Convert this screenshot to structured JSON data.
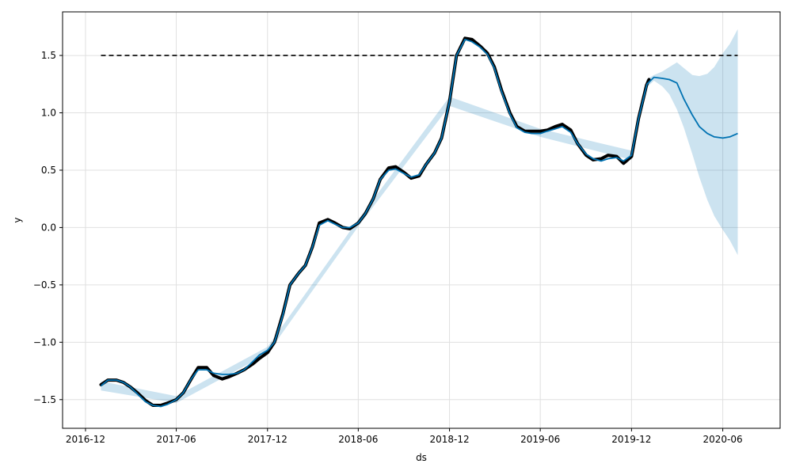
{
  "chart_data": {
    "type": "line",
    "title": "",
    "xlabel": "ds",
    "ylabel": "y",
    "x_range": [
      "2016-10-16",
      "2020-09-24"
    ],
    "ylim": [
      -1.75,
      1.88
    ],
    "x_ticks": [
      {
        "date": "2016-12-01",
        "label": "2016-12"
      },
      {
        "date": "2017-06-01",
        "label": "2017-06"
      },
      {
        "date": "2017-12-01",
        "label": "2017-12"
      },
      {
        "date": "2018-06-01",
        "label": "2018-06"
      },
      {
        "date": "2018-12-01",
        "label": "2018-12"
      },
      {
        "date": "2019-06-01",
        "label": "2019-06"
      },
      {
        "date": "2019-12-01",
        "label": "2019-12"
      },
      {
        "date": "2020-06-01",
        "label": "2020-06"
      }
    ],
    "y_ticks": [
      {
        "value": -1.5,
        "label": "−1.5"
      },
      {
        "value": -1.0,
        "label": "−1.0"
      },
      {
        "value": -0.5,
        "label": "−0.5"
      },
      {
        "value": 0.0,
        "label": "0.0"
      },
      {
        "value": 0.5,
        "label": "0.5"
      },
      {
        "value": 1.0,
        "label": "1.0"
      },
      {
        "value": 1.5,
        "label": "1.5"
      }
    ],
    "grid": true,
    "colors": {
      "observed": "#000000",
      "forecast": "#0072B2",
      "interval": "#0072B2",
      "cap": "#000000",
      "grid": "#e0e0e0"
    },
    "cap": {
      "value": 1.5,
      "x_start": "2017-01-01",
      "x_end": "2020-07-01"
    },
    "observed": [
      {
        "x": "2017-01-01",
        "y": -1.37
      },
      {
        "x": "2017-01-15",
        "y": -1.33
      },
      {
        "x": "2017-02-01",
        "y": -1.33
      },
      {
        "x": "2017-02-15",
        "y": -1.35
      },
      {
        "x": "2017-03-01",
        "y": -1.39
      },
      {
        "x": "2017-03-15",
        "y": -1.44
      },
      {
        "x": "2017-04-01",
        "y": -1.51
      },
      {
        "x": "2017-04-15",
        "y": -1.55
      },
      {
        "x": "2017-05-01",
        "y": -1.55
      },
      {
        "x": "2017-05-15",
        "y": -1.53
      },
      {
        "x": "2017-06-01",
        "y": -1.5
      },
      {
        "x": "2017-06-15",
        "y": -1.44
      },
      {
        "x": "2017-07-01",
        "y": -1.32
      },
      {
        "x": "2017-07-15",
        "y": -1.22
      },
      {
        "x": "2017-08-01",
        "y": -1.22
      },
      {
        "x": "2017-08-15",
        "y": -1.29
      },
      {
        "x": "2017-09-01",
        "y": -1.32
      },
      {
        "x": "2017-09-15",
        "y": -1.3
      },
      {
        "x": "2017-10-01",
        "y": -1.27
      },
      {
        "x": "2017-10-15",
        "y": -1.24
      },
      {
        "x": "2017-11-01",
        "y": -1.19
      },
      {
        "x": "2017-11-15",
        "y": -1.14
      },
      {
        "x": "2017-12-01",
        "y": -1.09
      },
      {
        "x": "2017-12-15",
        "y": -1.0
      },
      {
        "x": "2018-01-01",
        "y": -0.75
      },
      {
        "x": "2018-01-15",
        "y": -0.5
      },
      {
        "x": "2018-02-01",
        "y": -0.4
      },
      {
        "x": "2018-02-15",
        "y": -0.33
      },
      {
        "x": "2018-03-01",
        "y": -0.17
      },
      {
        "x": "2018-03-15",
        "y": 0.04
      },
      {
        "x": "2018-04-01",
        "y": 0.07
      },
      {
        "x": "2018-04-15",
        "y": 0.04
      },
      {
        "x": "2018-05-01",
        "y": 0.0
      },
      {
        "x": "2018-05-15",
        "y": -0.01
      },
      {
        "x": "2018-06-01",
        "y": 0.04
      },
      {
        "x": "2018-06-15",
        "y": 0.12
      },
      {
        "x": "2018-07-01",
        "y": 0.25
      },
      {
        "x": "2018-07-15",
        "y": 0.42
      },
      {
        "x": "2018-08-01",
        "y": 0.52
      },
      {
        "x": "2018-08-15",
        "y": 0.53
      },
      {
        "x": "2018-09-01",
        "y": 0.48
      },
      {
        "x": "2018-09-15",
        "y": 0.43
      },
      {
        "x": "2018-10-01",
        "y": 0.45
      },
      {
        "x": "2018-10-15",
        "y": 0.55
      },
      {
        "x": "2018-11-01",
        "y": 0.65
      },
      {
        "x": "2018-11-15",
        "y": 0.78
      },
      {
        "x": "2018-12-01",
        "y": 1.1
      },
      {
        "x": "2018-12-15",
        "y": 1.5
      },
      {
        "x": "2019-01-01",
        "y": 1.65
      },
      {
        "x": "2019-01-15",
        "y": 1.64
      },
      {
        "x": "2019-02-01",
        "y": 1.58
      },
      {
        "x": "2019-02-15",
        "y": 1.52
      },
      {
        "x": "2019-03-01",
        "y": 1.4
      },
      {
        "x": "2019-03-15",
        "y": 1.2
      },
      {
        "x": "2019-04-01",
        "y": 1.0
      },
      {
        "x": "2019-04-15",
        "y": 0.88
      },
      {
        "x": "2019-05-01",
        "y": 0.84
      },
      {
        "x": "2019-05-15",
        "y": 0.84
      },
      {
        "x": "2019-06-01",
        "y": 0.84
      },
      {
        "x": "2019-06-15",
        "y": 0.85
      },
      {
        "x": "2019-07-01",
        "y": 0.88
      },
      {
        "x": "2019-07-15",
        "y": 0.9
      },
      {
        "x": "2019-08-01",
        "y": 0.85
      },
      {
        "x": "2019-08-15",
        "y": 0.73
      },
      {
        "x": "2019-09-01",
        "y": 0.63
      },
      {
        "x": "2019-09-15",
        "y": 0.59
      },
      {
        "x": "2019-10-01",
        "y": 0.6
      },
      {
        "x": "2019-10-15",
        "y": 0.63
      },
      {
        "x": "2019-11-01",
        "y": 0.62
      },
      {
        "x": "2019-11-15",
        "y": 0.56
      },
      {
        "x": "2019-12-01",
        "y": 0.62
      },
      {
        "x": "2019-12-15",
        "y": 0.95
      },
      {
        "x": "2019-12-31",
        "y": 1.24
      },
      {
        "x": "2020-01-05",
        "y": 1.29
      }
    ],
    "forecast": [
      {
        "x": "2017-01-01",
        "y": -1.38
      },
      {
        "x": "2017-01-15",
        "y": -1.33
      },
      {
        "x": "2017-02-01",
        "y": -1.33
      },
      {
        "x": "2017-02-15",
        "y": -1.35
      },
      {
        "x": "2017-03-01",
        "y": -1.39
      },
      {
        "x": "2017-03-15",
        "y": -1.45
      },
      {
        "x": "2017-04-01",
        "y": -1.52
      },
      {
        "x": "2017-04-15",
        "y": -1.55
      },
      {
        "x": "2017-05-01",
        "y": -1.56
      },
      {
        "x": "2017-05-15",
        "y": -1.54
      },
      {
        "x": "2017-06-01",
        "y": -1.5
      },
      {
        "x": "2017-06-15",
        "y": -1.44
      },
      {
        "x": "2017-07-01",
        "y": -1.32
      },
      {
        "x": "2017-07-15",
        "y": -1.24
      },
      {
        "x": "2017-08-01",
        "y": -1.24
      },
      {
        "x": "2017-08-15",
        "y": -1.27
      },
      {
        "x": "2017-09-01",
        "y": -1.28
      },
      {
        "x": "2017-09-15",
        "y": -1.28
      },
      {
        "x": "2017-10-01",
        "y": -1.27
      },
      {
        "x": "2017-10-15",
        "y": -1.24
      },
      {
        "x": "2017-11-01",
        "y": -1.17
      },
      {
        "x": "2017-11-15",
        "y": -1.11
      },
      {
        "x": "2017-12-01",
        "y": -1.07
      },
      {
        "x": "2017-12-15",
        "y": -1.0
      },
      {
        "x": "2018-01-01",
        "y": -0.76
      },
      {
        "x": "2018-01-15",
        "y": -0.5
      },
      {
        "x": "2018-02-01",
        "y": -0.4
      },
      {
        "x": "2018-02-15",
        "y": -0.33
      },
      {
        "x": "2018-03-01",
        "y": -0.17
      },
      {
        "x": "2018-03-15",
        "y": 0.02
      },
      {
        "x": "2018-04-01",
        "y": 0.06
      },
      {
        "x": "2018-04-15",
        "y": 0.03
      },
      {
        "x": "2018-05-01",
        "y": 0.0
      },
      {
        "x": "2018-05-15",
        "y": 0.0
      },
      {
        "x": "2018-06-01",
        "y": 0.04
      },
      {
        "x": "2018-06-15",
        "y": 0.12
      },
      {
        "x": "2018-07-01",
        "y": 0.25
      },
      {
        "x": "2018-07-15",
        "y": 0.42
      },
      {
        "x": "2018-08-01",
        "y": 0.5
      },
      {
        "x": "2018-08-15",
        "y": 0.51
      },
      {
        "x": "2018-09-01",
        "y": 0.47
      },
      {
        "x": "2018-09-15",
        "y": 0.44
      },
      {
        "x": "2018-10-01",
        "y": 0.46
      },
      {
        "x": "2018-10-15",
        "y": 0.55
      },
      {
        "x": "2018-11-01",
        "y": 0.65
      },
      {
        "x": "2018-11-15",
        "y": 0.78
      },
      {
        "x": "2018-12-01",
        "y": 1.1
      },
      {
        "x": "2018-12-15",
        "y": 1.5
      },
      {
        "x": "2019-01-01",
        "y": 1.64
      },
      {
        "x": "2019-01-15",
        "y": 1.62
      },
      {
        "x": "2019-02-01",
        "y": 1.57
      },
      {
        "x": "2019-02-15",
        "y": 1.51
      },
      {
        "x": "2019-03-01",
        "y": 1.39
      },
      {
        "x": "2019-03-15",
        "y": 1.19
      },
      {
        "x": "2019-04-01",
        "y": 0.99
      },
      {
        "x": "2019-04-15",
        "y": 0.87
      },
      {
        "x": "2019-05-01",
        "y": 0.83
      },
      {
        "x": "2019-05-15",
        "y": 0.82
      },
      {
        "x": "2019-06-01",
        "y": 0.82
      },
      {
        "x": "2019-06-15",
        "y": 0.84
      },
      {
        "x": "2019-07-01",
        "y": 0.86
      },
      {
        "x": "2019-07-15",
        "y": 0.88
      },
      {
        "x": "2019-08-01",
        "y": 0.83
      },
      {
        "x": "2019-08-15",
        "y": 0.73
      },
      {
        "x": "2019-09-01",
        "y": 0.64
      },
      {
        "x": "2019-09-15",
        "y": 0.6
      },
      {
        "x": "2019-10-01",
        "y": 0.58
      },
      {
        "x": "2019-10-15",
        "y": 0.6
      },
      {
        "x": "2019-11-01",
        "y": 0.61
      },
      {
        "x": "2019-11-15",
        "y": 0.58
      },
      {
        "x": "2019-12-01",
        "y": 0.63
      },
      {
        "x": "2019-12-15",
        "y": 0.95
      },
      {
        "x": "2020-01-01",
        "y": 1.25
      },
      {
        "x": "2020-01-15",
        "y": 1.31
      },
      {
        "x": "2020-02-01",
        "y": 1.3
      },
      {
        "x": "2020-02-15",
        "y": 1.29
      },
      {
        "x": "2020-03-01",
        "y": 1.26
      },
      {
        "x": "2020-03-15",
        "y": 1.12
      },
      {
        "x": "2020-04-01",
        "y": 0.98
      },
      {
        "x": "2020-04-15",
        "y": 0.88
      },
      {
        "x": "2020-05-01",
        "y": 0.82
      },
      {
        "x": "2020-05-15",
        "y": 0.79
      },
      {
        "x": "2020-06-01",
        "y": 0.78
      },
      {
        "x": "2020-06-15",
        "y": 0.79
      },
      {
        "x": "2020-07-01",
        "y": 0.82
      }
    ],
    "interval": {
      "x": [
        "2017-01-01",
        "2017-06-01",
        "2017-12-01",
        "2018-06-01",
        "2018-12-01",
        "2019-06-01",
        "2019-12-01",
        "2019-12-31",
        "2020-01-15",
        "2020-02-01",
        "2020-02-15",
        "2020-03-01",
        "2020-03-15",
        "2020-04-01",
        "2020-04-15",
        "2020-05-01",
        "2020-05-15",
        "2020-06-01",
        "2020-06-15",
        "2020-07-01"
      ],
      "upper": [
        -1.34,
        -1.47,
        -1.04,
        0.07,
        1.14,
        0.86,
        0.67,
        1.29,
        1.33,
        1.36,
        1.4,
        1.44,
        1.39,
        1.33,
        1.32,
        1.34,
        1.4,
        1.52,
        1.6,
        1.73
      ],
      "lower": [
        -1.42,
        -1.53,
        -1.1,
        0.01,
        1.06,
        0.79,
        0.59,
        1.22,
        1.28,
        1.23,
        1.16,
        1.03,
        0.87,
        0.64,
        0.44,
        0.24,
        0.1,
        -0.02,
        -0.11,
        -0.24
      ]
    }
  }
}
